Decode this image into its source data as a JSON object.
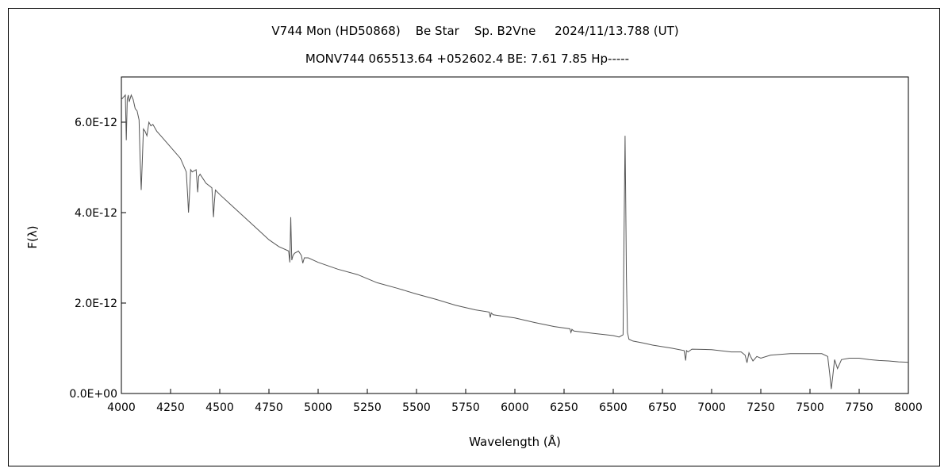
{
  "chart_data": {
    "type": "line",
    "title": "V744 Mon (HD50868)    Be Star    Sp. B2Vne     2024/11/13.788 (UT)",
    "subtitle": "MONV744 065513.64 +052602.4 BE: 7.61 7.85 Hp-----",
    "xlabel": "Wavelength (Å)",
    "ylabel": "F(λ)",
    "xlim": [
      4000,
      8000
    ],
    "ylim": [
      0,
      7e-12
    ],
    "grid": false,
    "x_ticks": [
      4000,
      4250,
      4500,
      4750,
      5000,
      5250,
      5500,
      5750,
      6000,
      6250,
      6500,
      6750,
      7000,
      7250,
      7500,
      7750,
      8000
    ],
    "x_tick_labels": [
      "4000",
      "4250",
      "4500",
      "4750",
      "5000",
      "5250",
      "5500",
      "5750",
      "6000",
      "6250",
      "6500",
      "6750",
      "7000",
      "7250",
      "7500",
      "7750",
      "8000"
    ],
    "y_ticks": [
      0,
      2e-12,
      4e-12,
      6e-12
    ],
    "y_tick_labels": [
      "0.0E+00",
      "2.0E-12",
      "4.0E-12",
      "6.0E-12"
    ],
    "line_color": "#555555",
    "series": [
      {
        "x": [
          4000,
          4010,
          4020,
          4025,
          4030,
          4035,
          4040,
          4050,
          4060,
          4070,
          4080,
          4090,
          4095,
          4101,
          4106,
          4112,
          4120,
          4130,
          4140,
          4150,
          4160,
          4180,
          4200,
          4230,
          4260,
          4300,
          4330,
          4338,
          4341,
          4345,
          4352,
          4360,
          4380,
          4388,
          4393,
          4400,
          4430,
          4460,
          4468,
          4472,
          4478,
          4500,
          4550,
          4600,
          4650,
          4700,
          4750,
          4800,
          4850,
          4856,
          4861,
          4866,
          4872,
          4880,
          4900,
          4915,
          4922,
          4930,
          4950,
          5000,
          5100,
          5200,
          5300,
          5400,
          5500,
          5600,
          5700,
          5800,
          5870,
          5875,
          5880,
          5890,
          6000,
          6100,
          6200,
          6280,
          6285,
          6290,
          6300,
          6400,
          6500,
          6530,
          6550,
          6555,
          6560,
          6563,
          6567,
          6572,
          6580,
          6600,
          6650,
          6700,
          6800,
          6860,
          6868,
          6872,
          6880,
          6900,
          7000,
          7100,
          7150,
          7170,
          7180,
          7190,
          7200,
          7210,
          7230,
          7250,
          7300,
          7400,
          7500,
          7560,
          7590,
          7600,
          7608,
          7615,
          7625,
          7640,
          7660,
          7700,
          7750,
          7800,
          7850,
          7900,
          7950,
          8000
        ],
        "y": [
          6.5e-12,
          6.55e-12,
          6.6e-12,
          5.6e-12,
          6.5e-12,
          6.6e-12,
          6.45e-12,
          6.6e-12,
          6.5e-12,
          6.3e-12,
          6.25e-12,
          6.05e-12,
          5.2e-12,
          4.5e-12,
          5.1e-12,
          5.85e-12,
          5.8e-12,
          5.7e-12,
          6e-12,
          5.92e-12,
          5.95e-12,
          5.8e-12,
          5.7e-12,
          5.55e-12,
          5.4e-12,
          5.2e-12,
          4.9e-12,
          4.3e-12,
          4e-12,
          4.3e-12,
          4.95e-12,
          4.9e-12,
          4.95e-12,
          4.45e-12,
          4.8e-12,
          4.85e-12,
          4.65e-12,
          4.55e-12,
          3.9e-12,
          4.2e-12,
          4.5e-12,
          4.4e-12,
          4.2e-12,
          4e-12,
          3.8e-12,
          3.6e-12,
          3.4e-12,
          3.25e-12,
          3.15e-12,
          2.9e-12,
          3.9e-12,
          2.95e-12,
          3.05e-12,
          3.1e-12,
          3.15e-12,
          3.05e-12,
          2.88e-12,
          3e-12,
          3e-12,
          2.9e-12,
          2.75e-12,
          2.63e-12,
          2.45e-12,
          2.33e-12,
          2.2e-12,
          2.08e-12,
          1.95e-12,
          1.85e-12,
          1.8e-12,
          1.68e-12,
          1.78e-12,
          1.74e-12,
          1.67e-12,
          1.57e-12,
          1.48e-12,
          1.43e-12,
          1.35e-12,
          1.42e-12,
          1.38e-12,
          1.33e-12,
          1.28e-12,
          1.25e-12,
          1.3e-12,
          3.5e-12,
          5.7e-12,
          4.5e-12,
          2.6e-12,
          1.35e-12,
          1.2e-12,
          1.16e-12,
          1.12e-12,
          1.07e-12,
          1e-12,
          9.5e-13,
          7.3e-13,
          9.5e-13,
          9.2e-13,
          9.8e-13,
          9.7e-13,
          9.2e-13,
          9.2e-13,
          8.5e-13,
          6.8e-13,
          9e-13,
          8e-13,
          7.2e-13,
          8.2e-13,
          7.8e-13,
          8.5e-13,
          8.8e-13,
          8.8e-13,
          8.8e-13,
          8.2e-13,
          4.5e-13,
          1e-13,
          3.5e-13,
          7.5e-13,
          5.5e-13,
          7.5e-13,
          7.8e-13,
          7.8e-13,
          7.5e-13,
          7.3e-13,
          7.2e-13,
          7e-13,
          6.9e-13
        ]
      }
    ]
  }
}
